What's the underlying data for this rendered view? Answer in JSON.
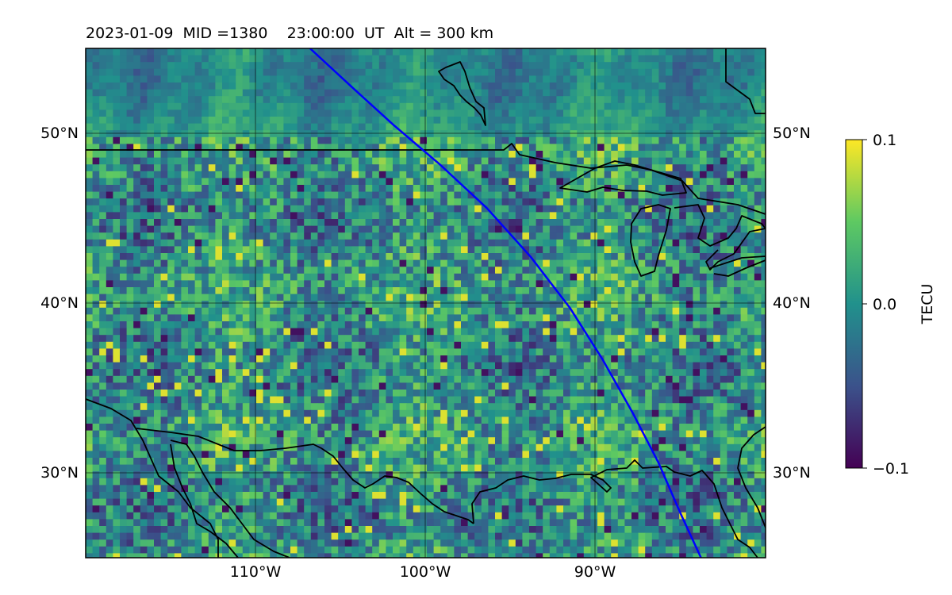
{
  "title": "2023-01-09  MID =1380    23:00:00  UT  Alt = 300 km",
  "map": {
    "lon_range": [
      -120,
      -80
    ],
    "lat_range": [
      25,
      55
    ],
    "lat_ticks": [
      {
        "value": 50,
        "label": "50°N"
      },
      {
        "value": 40,
        "label": "40°N"
      },
      {
        "value": 30,
        "label": "30°N"
      }
    ],
    "lon_ticks": [
      {
        "value": -110,
        "label": "110°W"
      },
      {
        "value": -100,
        "label": "100°W"
      },
      {
        "value": -90,
        "label": "90°W"
      }
    ],
    "gridlines": true,
    "track_color": "#0000ff",
    "track_points": [
      [
        -106.8,
        55
      ],
      [
        -104.2,
        52.6
      ],
      [
        -101.9,
        50.5
      ],
      [
        -99.2,
        48.2
      ],
      [
        -96.4,
        45.6
      ],
      [
        -93.8,
        42.7
      ],
      [
        -91.5,
        39.7
      ],
      [
        -89.6,
        36.7
      ],
      [
        -87.8,
        33.5
      ],
      [
        -86.3,
        30.6
      ],
      [
        -85.0,
        27.6
      ],
      [
        -83.8,
        25
      ]
    ]
  },
  "colorbar": {
    "label": "TECU",
    "min": -0.1,
    "max": 0.1,
    "ticks": [
      {
        "value": 0.1,
        "label": "0.1"
      },
      {
        "value": 0.0,
        "label": "0.0"
      },
      {
        "value": -0.1,
        "label": "−0.1"
      }
    ],
    "colormap": [
      "#440154",
      "#3b528b",
      "#21918c",
      "#5ec962",
      "#fde725"
    ]
  }
}
